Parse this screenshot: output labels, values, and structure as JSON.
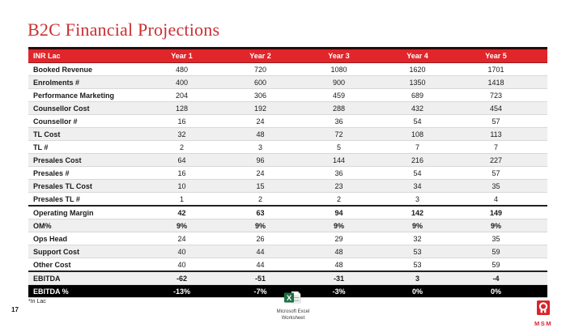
{
  "slide": {
    "title": "B2C Financial Projections",
    "footnote": "*In Lac",
    "page_number": "17",
    "embedded_object": {
      "icon": "excel-icon",
      "label_line1": "Microsoft Excel",
      "label_line2": "Worksheet"
    },
    "logo": {
      "icon": "msm-logo-icon",
      "wordmark": "MSM"
    }
  },
  "colors": {
    "header_red": "#E0262B",
    "title_red": "#C92F33",
    "inverse_row_black": "#000000",
    "shaded_row_gray": "#EFEFEF",
    "excel_green": "#1E7145"
  },
  "table": {
    "header": [
      "INR Lac",
      "Year 1",
      "Year 2",
      "Year 3",
      "Year 4",
      "Year 5"
    ],
    "rows": [
      {
        "label": "Booked Revenue",
        "values": [
          "480",
          "720",
          "1080",
          "1620",
          "1701"
        ],
        "shaded": false,
        "emphasis": false,
        "divider_top": false,
        "inverse": false
      },
      {
        "label": "Enrolments #",
        "values": [
          "400",
          "600",
          "900",
          "1350",
          "1418"
        ],
        "shaded": true,
        "emphasis": false,
        "divider_top": false,
        "inverse": false
      },
      {
        "label": "Performance Marketing",
        "values": [
          "204",
          "306",
          "459",
          "689",
          "723"
        ],
        "shaded": false,
        "emphasis": false,
        "divider_top": false,
        "inverse": false
      },
      {
        "label": "Counsellor Cost",
        "values": [
          "128",
          "192",
          "288",
          "432",
          "454"
        ],
        "shaded": true,
        "emphasis": false,
        "divider_top": false,
        "inverse": false
      },
      {
        "label": "Counsellor #",
        "values": [
          "16",
          "24",
          "36",
          "54",
          "57"
        ],
        "shaded": false,
        "emphasis": false,
        "divider_top": false,
        "inverse": false
      },
      {
        "label": "TL Cost",
        "values": [
          "32",
          "48",
          "72",
          "108",
          "113"
        ],
        "shaded": true,
        "emphasis": false,
        "divider_top": false,
        "inverse": false
      },
      {
        "label": "TL #",
        "values": [
          "2",
          "3",
          "5",
          "7",
          "7"
        ],
        "shaded": false,
        "emphasis": false,
        "divider_top": false,
        "inverse": false
      },
      {
        "label": "Presales Cost",
        "values": [
          "64",
          "96",
          "144",
          "216",
          "227"
        ],
        "shaded": true,
        "emphasis": false,
        "divider_top": false,
        "inverse": false
      },
      {
        "label": "Presales #",
        "values": [
          "16",
          "24",
          "36",
          "54",
          "57"
        ],
        "shaded": false,
        "emphasis": false,
        "divider_top": false,
        "inverse": false
      },
      {
        "label": "Presales TL Cost",
        "values": [
          "10",
          "15",
          "23",
          "34",
          "35"
        ],
        "shaded": true,
        "emphasis": false,
        "divider_top": false,
        "inverse": false
      },
      {
        "label": "Presales TL #",
        "values": [
          "1",
          "2",
          "2",
          "3",
          "4"
        ],
        "shaded": false,
        "emphasis": false,
        "divider_top": false,
        "inverse": false
      },
      {
        "label": "Operating Margin",
        "values": [
          "42",
          "63",
          "94",
          "142",
          "149"
        ],
        "shaded": false,
        "emphasis": true,
        "divider_top": true,
        "inverse": false
      },
      {
        "label": "OM%",
        "values": [
          "9%",
          "9%",
          "9%",
          "9%",
          "9%"
        ],
        "shaded": true,
        "emphasis": true,
        "divider_top": false,
        "inverse": false
      },
      {
        "label": "Ops Head",
        "values": [
          "24",
          "26",
          "29",
          "32",
          "35"
        ],
        "shaded": false,
        "emphasis": false,
        "divider_top": false,
        "inverse": false
      },
      {
        "label": "Support Cost",
        "values": [
          "40",
          "44",
          "48",
          "53",
          "59"
        ],
        "shaded": true,
        "emphasis": false,
        "divider_top": false,
        "inverse": false
      },
      {
        "label": "Other Cost",
        "values": [
          "40",
          "44",
          "48",
          "53",
          "59"
        ],
        "shaded": false,
        "emphasis": false,
        "divider_top": false,
        "inverse": false
      },
      {
        "label": "EBITDA",
        "values": [
          "-62",
          "-51",
          "-31",
          "3",
          "-4"
        ],
        "shaded": true,
        "emphasis": true,
        "divider_top": true,
        "inverse": false
      },
      {
        "label": "EBITDA %",
        "values": [
          "-13%",
          "-7%",
          "-3%",
          "0%",
          "0%"
        ],
        "shaded": false,
        "emphasis": true,
        "divider_top": false,
        "inverse": true
      }
    ]
  }
}
